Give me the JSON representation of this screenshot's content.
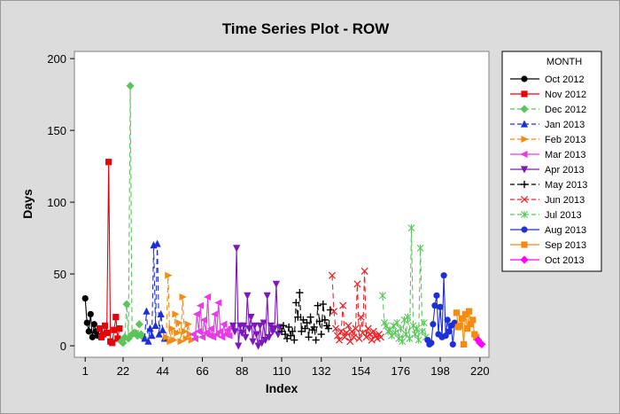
{
  "chart_data": {
    "type": "line",
    "title": "Time Series Plot - ROW",
    "xlabel": "Index",
    "ylabel": "Days",
    "xlim": [
      -5,
      225
    ],
    "ylim": [
      -8,
      205
    ],
    "xticks": [
      1,
      22,
      44,
      66,
      88,
      110,
      132,
      154,
      176,
      198,
      220
    ],
    "yticks": [
      0,
      50,
      100,
      150,
      200
    ],
    "grid": false,
    "legend_title": "MONTH",
    "legend_position": "right",
    "series": [
      {
        "name": "Oct 2012",
        "color": "#000000",
        "marker": "circle",
        "dash": "solid",
        "x": [
          1,
          2,
          3,
          4,
          5,
          6,
          7,
          8
        ],
        "y": [
          33,
          16,
          10,
          22,
          6,
          15,
          10,
          7
        ]
      },
      {
        "name": "Nov 2012",
        "color": "#e8000b",
        "marker": "square",
        "dash": "solid",
        "x": [
          9,
          10,
          11,
          12,
          13,
          14,
          15,
          16,
          17,
          18,
          19,
          20
        ],
        "y": [
          12,
          6,
          8,
          14,
          9,
          128,
          3,
          2,
          11,
          20,
          5,
          12
        ]
      },
      {
        "name": "Dec 2012",
        "color": "#5bc45b",
        "marker": "diamond",
        "dash": "dashed",
        "x": [
          21,
          22,
          23,
          24,
          25,
          26,
          27,
          28,
          29,
          30,
          31,
          32,
          33
        ],
        "y": [
          3,
          2,
          6,
          29,
          5,
          181,
          8,
          9,
          9,
          7,
          15,
          8,
          6
        ]
      },
      {
        "name": "Jan 2013",
        "color": "#1f2fd6",
        "marker": "triangle-up",
        "dash": "dashed",
        "x": [
          34,
          35,
          36,
          37,
          38,
          39,
          40,
          41,
          42,
          43,
          44,
          45
        ],
        "y": [
          5,
          24,
          3,
          12,
          7,
          70,
          14,
          71,
          8,
          22,
          11,
          5
        ]
      },
      {
        "name": "Feb 2013",
        "color": "#f28c16",
        "marker": "triangle-right",
        "dash": "dashed",
        "x": [
          46,
          47,
          48,
          49,
          50,
          51,
          52,
          53,
          54,
          55,
          56,
          57,
          58,
          59,
          60
        ],
        "y": [
          6,
          49,
          3,
          12,
          4,
          22,
          9,
          16,
          3,
          34,
          10,
          5,
          15,
          8,
          4
        ]
      },
      {
        "name": "Mar 2013",
        "color": "#e63ce6",
        "marker": "triangle-left",
        "dash": "solid",
        "x": [
          61,
          62,
          63,
          64,
          65,
          66,
          67,
          68,
          69,
          70,
          71,
          72,
          73,
          74,
          75,
          76,
          77,
          78,
          79,
          80,
          81,
          82
        ],
        "y": [
          8,
          5,
          22,
          10,
          28,
          6,
          18,
          9,
          34,
          7,
          12,
          6,
          22,
          8,
          30,
          10,
          6,
          15,
          8,
          11,
          7,
          13
        ]
      },
      {
        "name": "Apr 2013",
        "color": "#7a19b8",
        "marker": "triangle-down",
        "dash": "solid",
        "x": [
          83,
          84,
          85,
          86,
          87,
          88,
          89,
          90,
          91,
          92,
          93,
          94,
          95,
          96,
          97,
          98,
          99,
          100,
          101,
          102,
          103,
          104,
          105,
          106,
          107,
          108,
          109
        ],
        "y": [
          14,
          10,
          68,
          0,
          14,
          9,
          14,
          6,
          35,
          12,
          20,
          3,
          14,
          8,
          0,
          14,
          2,
          16,
          4,
          35,
          6,
          14,
          10,
          12,
          43,
          8,
          13
        ]
      },
      {
        "name": "May 2013",
        "color": "#000000",
        "marker": "plus",
        "dash": "dashed",
        "x": [
          110,
          111,
          112,
          113,
          114,
          115,
          116,
          117,
          118,
          119,
          120,
          121,
          122,
          123,
          124,
          125,
          126,
          127,
          128,
          129,
          130,
          131,
          132,
          133,
          134,
          135,
          136,
          137
        ],
        "y": [
          10,
          14,
          8,
          5,
          13,
          7,
          10,
          4,
          30,
          20,
          37,
          10,
          18,
          12,
          16,
          6,
          20,
          11,
          13,
          4,
          28,
          17,
          8,
          29,
          18,
          14,
          12,
          25
        ]
      },
      {
        "name": "Jun 2013",
        "color": "#e8262b",
        "marker": "x",
        "dash": "dashed",
        "x": [
          138,
          139,
          140,
          141,
          142,
          143,
          144,
          145,
          146,
          147,
          148,
          149,
          150,
          151,
          152,
          153,
          154,
          155,
          156,
          157,
          158,
          159,
          160,
          161,
          162,
          163,
          164,
          165
        ],
        "y": [
          49,
          24,
          12,
          7,
          4,
          10,
          28,
          6,
          9,
          14,
          3,
          10,
          6,
          12,
          43,
          5,
          20,
          9,
          52,
          6,
          12,
          8,
          4,
          10,
          7,
          5,
          8,
          6
        ]
      },
      {
        "name": "Jul 2013",
        "color": "#5bc45b",
        "marker": "asterisk",
        "dash": "dashed",
        "x": [
          166,
          167,
          168,
          169,
          170,
          171,
          172,
          173,
          174,
          175,
          176,
          177,
          178,
          179,
          180,
          181,
          182,
          183,
          184,
          185,
          186,
          187,
          188,
          189,
          190
        ],
        "y": [
          35,
          16,
          14,
          10,
          11,
          7,
          14,
          9,
          16,
          5,
          12,
          3,
          18,
          8,
          20,
          5,
          82,
          14,
          8,
          12,
          4,
          68,
          10,
          16,
          6
        ]
      },
      {
        "name": "Aug 2013",
        "color": "#1f2fd6",
        "marker": "circle",
        "dash": "solid",
        "x": [
          191,
          192,
          193,
          194,
          195,
          196,
          197,
          198,
          199,
          200,
          201,
          202,
          203,
          204,
          205,
          206
        ],
        "y": [
          4,
          1,
          2,
          15,
          28,
          35,
          8,
          27,
          6,
          49,
          7,
          18,
          10,
          14,
          1,
          16
        ]
      },
      {
        "name": "Sep 2013",
        "color": "#f28c16",
        "marker": "square",
        "dash": "solid",
        "x": [
          207,
          208,
          209,
          210,
          211,
          212,
          213,
          214,
          215,
          216,
          217,
          218
        ],
        "y": [
          23,
          13,
          14,
          19,
          1,
          22,
          12,
          24,
          15,
          18,
          8,
          6
        ]
      },
      {
        "name": "Oct 2013",
        "color": "#ff00ff",
        "marker": "diamond",
        "dash": "solid",
        "x": [
          219,
          220,
          221
        ],
        "y": [
          4,
          2,
          1
        ]
      }
    ]
  }
}
